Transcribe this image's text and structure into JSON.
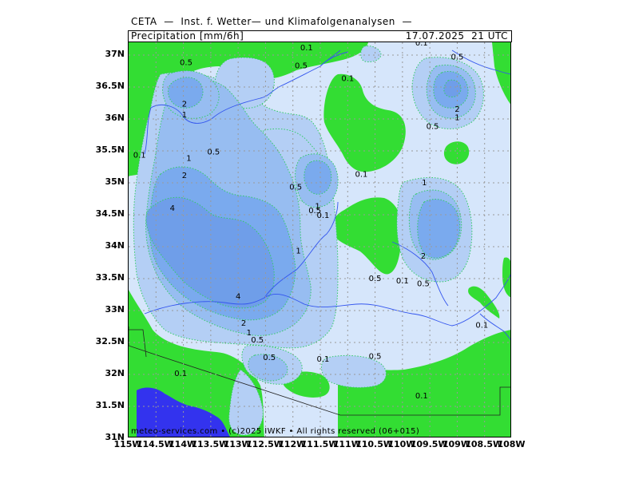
{
  "header": {
    "title": "CETA  —  Inst. f. Wetter— und Klimafolgenanalysen  —",
    "product": "Precipitation [mm/6h]",
    "valid_time": "17.07.2025  21 UTC"
  },
  "footer": {
    "credit": "meteo-services.com  •  (c)2025 IWKF  •  All rights reserved (06+015)"
  },
  "axes": {
    "lat_labels": [
      "37N",
      "36.5N",
      "36N",
      "35.5N",
      "35N",
      "34.5N",
      "34N",
      "33.5N",
      "33N",
      "32.5N",
      "32N",
      "31.5N",
      "31N"
    ],
    "lon_labels": [
      "115W",
      "114.5W",
      "114W",
      "113.5W",
      "113W",
      "112.5W",
      "112W",
      "111.5W",
      "111W",
      "110.5W",
      "110W",
      "109.5W",
      "109W",
      "108.5W",
      "108W"
    ]
  },
  "legend_colors": {
    "trace": "#33dd33",
    "c0_1": "#d6e6fb",
    "c0_5": "#b4cff5",
    "c1": "#97bdf1",
    "c2": "#7aaaee",
    "c4": "#6f9ee9",
    "water": "#3333ee"
  },
  "contour_labels": [
    {
      "text": "0.1",
      "lon": -111.75,
      "lat": 37.11
    },
    {
      "text": "0.5",
      "lon": -113.95,
      "lat": 36.88
    },
    {
      "text": "0.5",
      "lon": -111.85,
      "lat": 36.83
    },
    {
      "text": "0.1",
      "lon": -111.0,
      "lat": 36.63
    },
    {
      "text": "0.1",
      "lon": -109.65,
      "lat": 37.19
    },
    {
      "text": "0.5",
      "lon": -109.0,
      "lat": 36.97
    },
    {
      "text": "2",
      "lon": -113.98,
      "lat": 36.23
    },
    {
      "text": "1",
      "lon": -113.98,
      "lat": 36.06
    },
    {
      "text": "2",
      "lon": -109.0,
      "lat": 36.15
    },
    {
      "text": "1",
      "lon": -109.0,
      "lat": 36.02
    },
    {
      "text": "0.5",
      "lon": -109.45,
      "lat": 35.88
    },
    {
      "text": "0.1",
      "lon": -114.8,
      "lat": 35.43
    },
    {
      "text": "1",
      "lon": -113.9,
      "lat": 35.38
    },
    {
      "text": "0.5",
      "lon": -113.45,
      "lat": 35.48
    },
    {
      "text": "2",
      "lon": -113.98,
      "lat": 35.11
    },
    {
      "text": "0.1",
      "lon": -110.75,
      "lat": 35.13
    },
    {
      "text": "0.5",
      "lon": -111.95,
      "lat": 34.93
    },
    {
      "text": "1",
      "lon": -109.6,
      "lat": 35.0
    },
    {
      "text": "4",
      "lon": -114.2,
      "lat": 34.6
    },
    {
      "text": "1",
      "lon": -111.55,
      "lat": 34.63
    },
    {
      "text": "0.5",
      "lon": -111.6,
      "lat": 34.56
    },
    {
      "text": "0.1",
      "lon": -111.45,
      "lat": 34.49
    },
    {
      "text": "1",
      "lon": -111.9,
      "lat": 33.93
    },
    {
      "text": "2",
      "lon": -109.62,
      "lat": 33.85
    },
    {
      "text": "0.5",
      "lon": -110.5,
      "lat": 33.5
    },
    {
      "text": "0.1",
      "lon": -110.0,
      "lat": 33.46
    },
    {
      "text": "0.5",
      "lon": -109.62,
      "lat": 33.42
    },
    {
      "text": "4",
      "lon": -113.0,
      "lat": 33.22
    },
    {
      "text": "2",
      "lon": -112.9,
      "lat": 32.8
    },
    {
      "text": "1",
      "lon": -112.8,
      "lat": 32.65
    },
    {
      "text": "0.5",
      "lon": -112.65,
      "lat": 32.54
    },
    {
      "text": "0.1",
      "lon": -108.55,
      "lat": 32.77
    },
    {
      "text": "0.5",
      "lon": -112.43,
      "lat": 32.26
    },
    {
      "text": "0.1",
      "lon": -111.45,
      "lat": 32.24
    },
    {
      "text": "0.5",
      "lon": -110.5,
      "lat": 32.28
    },
    {
      "text": "0.1",
      "lon": -114.05,
      "lat": 32.01
    },
    {
      "text": "0.1",
      "lon": -109.65,
      "lat": 31.66
    }
  ]
}
